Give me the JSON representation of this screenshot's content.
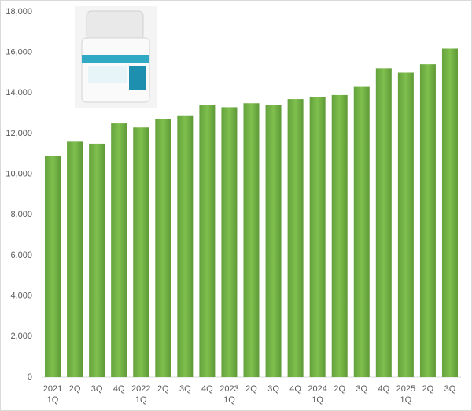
{
  "chart_data": {
    "type": "bar",
    "categories": [
      "1Q",
      "2Q",
      "3Q",
      "4Q",
      "1Q",
      "2Q",
      "3Q",
      "4Q",
      "1Q",
      "2Q",
      "3Q",
      "4Q",
      "1Q",
      "2Q",
      "3Q",
      "4Q",
      "1Q",
      "2Q",
      "3Q"
    ],
    "years": [
      "2021",
      null,
      null,
      null,
      "2022",
      null,
      null,
      null,
      "2023",
      null,
      null,
      null,
      "2024",
      null,
      null,
      null,
      "2025",
      null,
      null
    ],
    "values": [
      10900,
      11600,
      11500,
      12500,
      12300,
      12700,
      12900,
      13400,
      13300,
      13500,
      13400,
      13700,
      13800,
      13900,
      14300,
      15200,
      15000,
      15400,
      16200
    ],
    "color": "#70ad47",
    "ylim": [
      0,
      18000
    ],
    "yticks": [
      0,
      {
        "value": 2000,
        "label": "2,000"
      },
      {
        "value": 4000,
        "label": "4,000"
      },
      {
        "value": 6000,
        "label": "6,000"
      },
      {
        "value": 8000,
        "label": "8,000"
      },
      {
        "value": 10000,
        "label": "10,000"
      },
      {
        "value": 12000,
        "label": "12,000"
      },
      {
        "value": 14000,
        "label": "14,000"
      },
      {
        "value": 16000,
        "label": "16,000"
      },
      {
        "value": 18000,
        "label": "18,000"
      }
    ],
    "grid": false
  }
}
